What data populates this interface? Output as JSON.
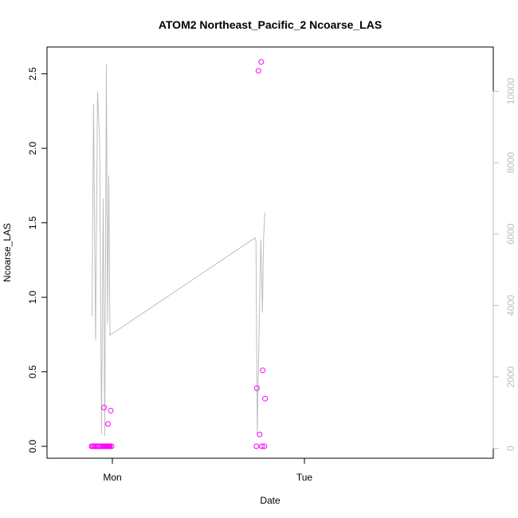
{
  "chart_data": {
    "type": "scatter",
    "title": "ATOM2 Northeast_Pacific_2 Ncoarse_LAS",
    "xlabel": "Date",
    "ylabel": "Ncoarse_LAS",
    "x_tick_labels": [
      "Mon",
      "Tue"
    ],
    "y_ticks": [
      "0.0",
      "0.5",
      "1.0",
      "1.5",
      "2.0",
      "2.5"
    ],
    "ylim": [
      -0.08,
      2.68
    ],
    "y2_ticks": [
      "0",
      "2000",
      "4000",
      "6000",
      "8000",
      "10000"
    ],
    "y2lim": [
      -276,
      11240
    ],
    "grid": false,
    "legend": "none",
    "colors": {
      "points": "#ff00ff",
      "line": "#bebebe",
      "right_axis": "#bebebe"
    },
    "series": [
      {
        "axis": "left",
        "style": "points",
        "x_hours": [
          -2.6,
          -2.45,
          -2.3,
          -2.15,
          -2.0,
          -1.8,
          -1.6,
          -1.4,
          -1.2,
          -1.1,
          -1.05,
          -1.0,
          -0.9,
          -0.8,
          -0.7,
          -0.6,
          -0.55,
          -0.5,
          -0.4,
          -0.3,
          -0.2,
          -0.1,
          18.0,
          18.05,
          18.25,
          18.4,
          18.6,
          18.68,
          18.8,
          19.0,
          19.08
        ],
        "y": [
          0.0,
          0.0,
          0.0,
          0.0,
          0.0,
          0.0,
          0.0,
          0.0,
          0.0,
          0.0,
          0.26,
          0.0,
          0.0,
          0.0,
          0.0,
          0.0,
          0.15,
          0.0,
          0.0,
          0.0,
          0.24,
          0.0,
          0.0,
          0.39,
          2.52,
          0.08,
          2.58,
          0.0,
          0.51,
          0.0,
          0.32
        ]
      },
      {
        "axis": "right",
        "style": "line",
        "x_hours": [
          -2.55,
          -2.35,
          -2.1,
          -1.85,
          -1.6,
          -1.35,
          -1.15,
          -0.95,
          -0.75,
          -0.6,
          -0.45,
          -0.3,
          -0.2,
          -0.1,
          17.85,
          17.95,
          18.1,
          18.35,
          18.55,
          18.75,
          18.9,
          19.05
        ],
        "y": [
          3700,
          9650,
          3050,
          10000,
          8700,
          400,
          7000,
          350,
          10750,
          3500,
          7650,
          3150,
          3200,
          3200,
          5900,
          5800,
          400,
          3500,
          5850,
          3800,
          5900,
          6600
        ]
      }
    ]
  }
}
